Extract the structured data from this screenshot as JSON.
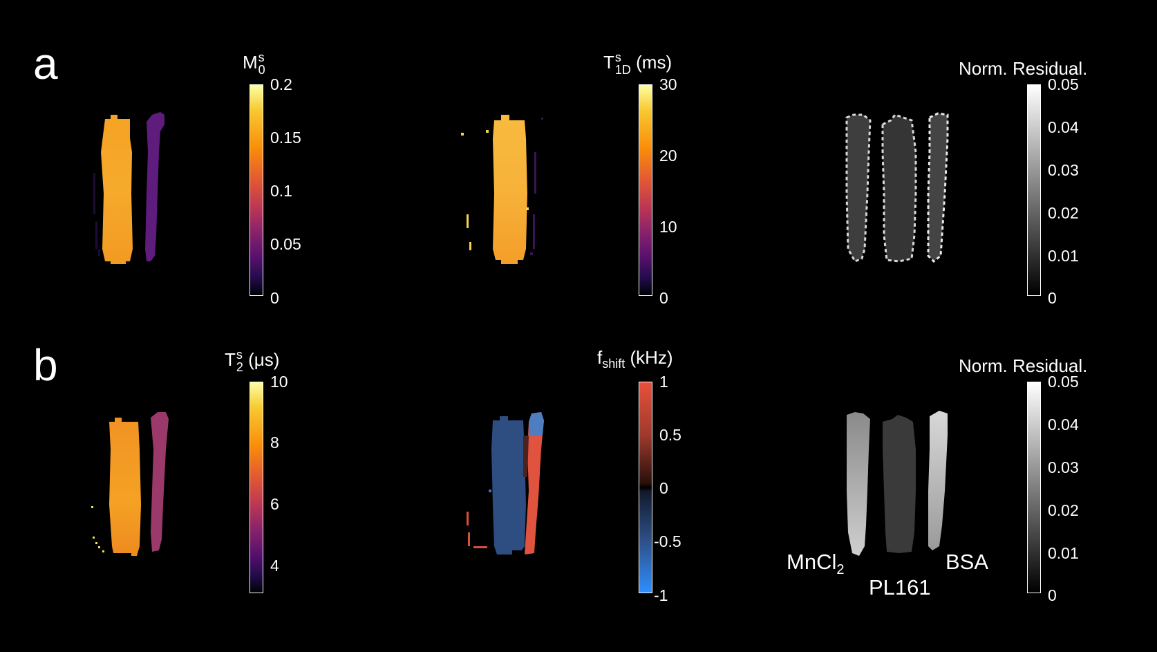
{
  "panels": [
    {
      "letter": "a"
    },
    {
      "letter": "b"
    }
  ],
  "maps": [
    {
      "title_main": "M",
      "title_sub": "0",
      "title_sup": "s",
      "title_unit": "",
      "colormap": "inferno",
      "ticks": [
        "0.2",
        "0.15",
        "0.1",
        "0.05",
        "0"
      ]
    },
    {
      "title_main": "T",
      "title_sub": "1D",
      "title_sup": "s",
      "title_unit": " (ms)",
      "colormap": "inferno",
      "ticks": [
        "30",
        "20",
        "10",
        "0"
      ]
    },
    {
      "title_main": "Norm. Residual.",
      "title_sub": "",
      "title_sup": "",
      "title_unit": "",
      "colormap": "gray",
      "ticks": [
        "0.05",
        "0.04",
        "0.03",
        "0.02",
        "0.01",
        "0"
      ]
    },
    {
      "title_main": "T",
      "title_sub": "2",
      "title_sup": "s",
      "title_unit": " (μs)",
      "colormap": "inferno",
      "ticks": [
        "10",
        "8",
        "6",
        "4"
      ]
    },
    {
      "title_main": "f",
      "title_sub": "shift",
      "title_sup": "",
      "title_unit": " (kHz)",
      "colormap": "diverging",
      "ticks": [
        "1",
        "0.5",
        "0",
        "-0.5",
        "-1"
      ]
    },
    {
      "title_main": "Norm. Residual.",
      "title_sub": "",
      "title_sup": "",
      "title_unit": "",
      "colormap": "gray",
      "ticks": [
        "0.05",
        "0.04",
        "0.03",
        "0.02",
        "0.01",
        "0"
      ]
    }
  ],
  "sample_labels": {
    "left_main": "MnCl",
    "left_sub": "2",
    "middle": "PL161",
    "right": "BSA"
  },
  "colors": {
    "background": "#000000",
    "text": "#ffffff"
  }
}
